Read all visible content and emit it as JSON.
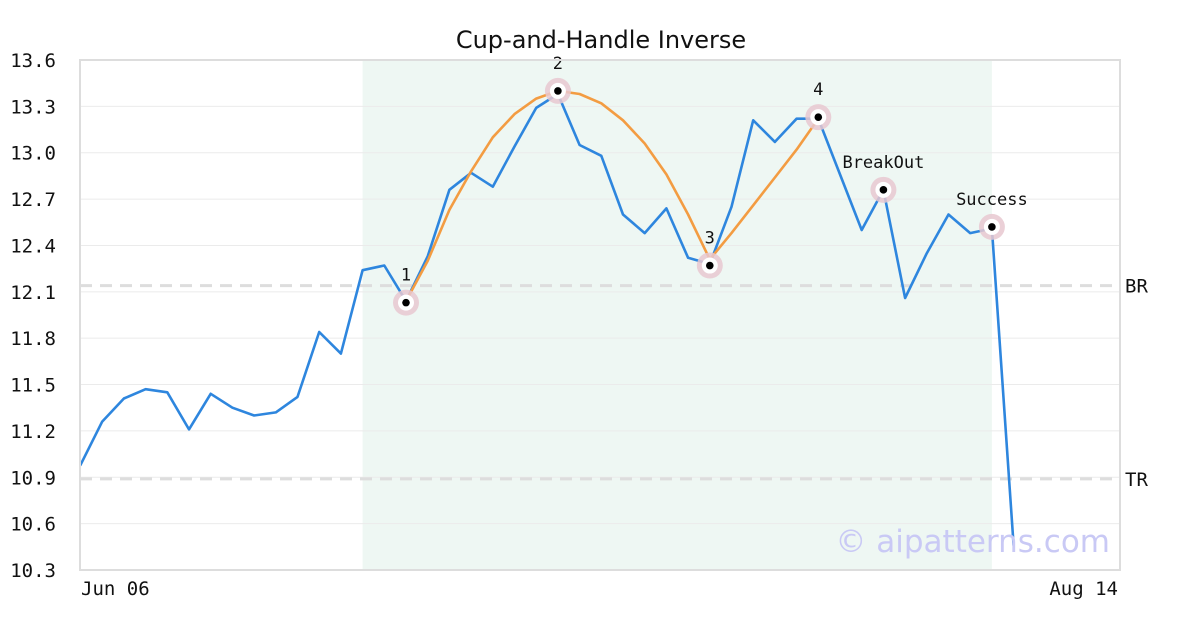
{
  "chart_data": {
    "type": "line",
    "title": "Cup-and-Handle Inverse",
    "ylim": [
      10.3,
      13.6
    ],
    "yticks": [
      "13.6",
      "13.3",
      "13.0",
      "12.7",
      "12.4",
      "12.1",
      "11.8",
      "11.5",
      "11.2",
      "10.9",
      "10.6",
      "10.3"
    ],
    "xlabels": [
      "Jun 06",
      "Aug 14"
    ],
    "series": [
      {
        "values": [
          10.98,
          11.26,
          11.41,
          11.47,
          11.45,
          11.21,
          11.44,
          11.35,
          11.3,
          11.32,
          11.42,
          11.84,
          11.7,
          12.24,
          12.27,
          12.04,
          12.33,
          12.76,
          12.87,
          12.78,
          13.04,
          13.29,
          13.38,
          13.05,
          12.98,
          12.6,
          12.48,
          12.64,
          12.32,
          12.28,
          12.65,
          13.21,
          13.07,
          13.22,
          13.22,
          12.86,
          12.5,
          12.76,
          12.06,
          12.35,
          12.6,
          12.48,
          12.51,
          10.46
        ]
      },
      {
        "start_index": 15,
        "values": [
          12.04,
          12.3,
          12.63,
          12.88,
          13.1,
          13.25,
          13.35,
          13.4,
          13.38,
          13.32,
          13.21,
          13.06,
          12.86,
          12.6,
          12.31,
          12.48,
          12.66,
          12.84,
          13.02,
          13.22
        ]
      }
    ],
    "pattern_range": [
      13,
      42
    ],
    "reference_lines": [
      {
        "label": "BR",
        "value": 12.14
      },
      {
        "label": "TR",
        "value": 10.89
      }
    ],
    "points": [
      {
        "label": "1",
        "index": 15,
        "value": 12.03
      },
      {
        "label": "2",
        "index": 22,
        "value": 13.4
      },
      {
        "label": "3",
        "index": 29,
        "value": 12.27
      },
      {
        "label": "4",
        "index": 34,
        "value": 13.23
      },
      {
        "label": "BreakOut",
        "index": 37,
        "value": 12.76
      },
      {
        "label": "Success",
        "index": 42,
        "value": 12.52
      }
    ],
    "watermark": "© aipatterns.com",
    "colors": {
      "price": "#2e86de",
      "pattern": "#f39c42",
      "shade": "#eef7f3",
      "marker_halo": "#e8c8d0",
      "reference": "#dddddd",
      "grid": "#ebebeb",
      "frame": "#dddddd",
      "watermark": "#c9c9f5"
    },
    "grid": true
  }
}
